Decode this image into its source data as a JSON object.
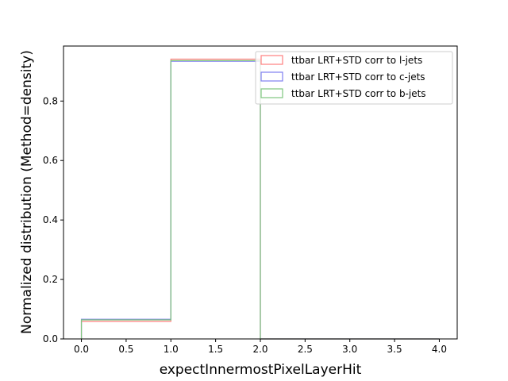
{
  "chart_data": {
    "type": "histogram-step",
    "title": "",
    "xlabel": "expectInnermostPixelLayerHit",
    "ylabel": "Normalized distribution (Method=density)",
    "xlim": [
      -0.2,
      4.2
    ],
    "ylim": [
      0,
      0.985
    ],
    "xticks": [
      0.0,
      0.5,
      1.0,
      1.5,
      2.0,
      2.5,
      3.0,
      3.5,
      4.0
    ],
    "xtick_labels": [
      "0.0",
      "0.5",
      "1.0",
      "1.5",
      "2.0",
      "2.5",
      "3.0",
      "3.5",
      "4.0"
    ],
    "yticks": [
      0.0,
      0.2,
      0.4,
      0.6,
      0.8
    ],
    "ytick_labels": [
      "0.0",
      "0.2",
      "0.4",
      "0.6",
      "0.8"
    ],
    "bin_edges": [
      0,
      1,
      2,
      3,
      4
    ],
    "series": [
      {
        "name": "ttbar LRT+STD corr to l-jets",
        "color": "#ff7f7f",
        "values": [
          0.059,
          0.941,
          0.0,
          0.0
        ]
      },
      {
        "name": "ttbar LRT+STD corr to c-jets",
        "color": "#7f7fef",
        "values": [
          0.066,
          0.934,
          0.0,
          0.0
        ]
      },
      {
        "name": "ttbar LRT+STD corr to b-jets",
        "color": "#7fc67f",
        "values": [
          0.064,
          0.936,
          0.0,
          0.0
        ]
      }
    ],
    "legend_position": "upper-right",
    "grid": false
  }
}
